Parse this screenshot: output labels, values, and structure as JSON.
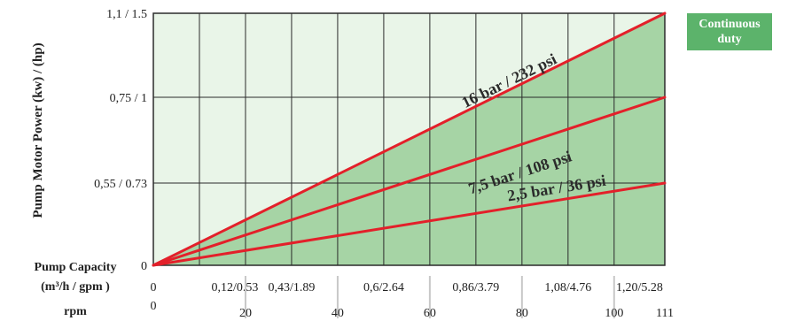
{
  "chart_data": {
    "type": "line",
    "ylabel": "Pump Motor Power (kw) / (hp)",
    "y_ticks": [
      {
        "value": 0,
        "label": "0"
      },
      {
        "value": 0.55,
        "label": "0,55 / 0.73"
      },
      {
        "value": 0.75,
        "label": "0,75 / 1"
      },
      {
        "value": 1.1,
        "label": "1,1 / 1.5"
      }
    ],
    "x_rows": [
      {
        "label": "Pump Capacity",
        "sublabel": "(m³/h / gpm )",
        "ticks": [
          "0",
          "0,12/0.53",
          "0,43/1.89",
          "0,6/2.64",
          "0,86/3.79",
          "1,08/4.76",
          "1,20/5.28"
        ]
      },
      {
        "label": "rpm",
        "ticks": [
          "0",
          "20",
          "40",
          "60",
          "80",
          "100",
          "111"
        ]
      }
    ],
    "x_rpm": [
      0,
      20,
      40,
      60,
      80,
      100,
      111
    ],
    "ylim": [
      0,
      1.1
    ],
    "xlim": [
      0,
      111
    ],
    "grid": true,
    "series": [
      {
        "name": "16 bar / 232 psi",
        "x": [
          0,
          111
        ],
        "y": [
          0,
          1.1
        ]
      },
      {
        "name": "7,5 bar / 108 psi",
        "x": [
          0,
          111
        ],
        "y": [
          0,
          0.75
        ]
      },
      {
        "name": "2,5 bar / 36 psi",
        "x": [
          0,
          111
        ],
        "y": [
          0,
          0.55
        ]
      }
    ],
    "legend": {
      "label": "Continuous duty",
      "placement": "top-right"
    },
    "colors": {
      "line": "#e3202a",
      "fill_duty": "#a6d4a5",
      "fill_bg": "#e9f5e8",
      "grid": "#2b2b2b",
      "legend_bg": "#5cb36b"
    }
  }
}
